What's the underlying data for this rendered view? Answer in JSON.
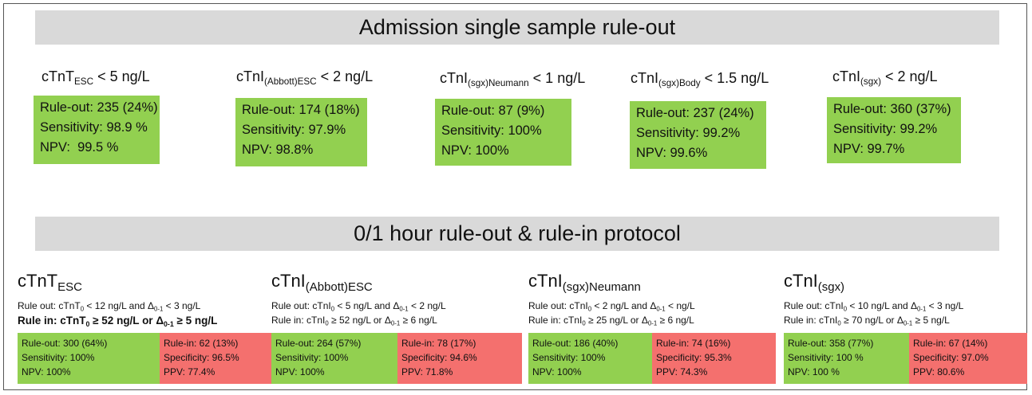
{
  "section1": {
    "title": "Admission single sample rule-out",
    "panels": [
      {
        "label": [
          "cTnT",
          {
            "sub": "ESC"
          },
          " < 5 ng/L"
        ],
        "lines": [
          "Rule-out: 235 (24%)",
          "Sensitivity: 98.9 %",
          "NPV:  99.5 %"
        ]
      },
      {
        "label": [
          "cTnI",
          {
            "sub": "(Abbott)ESC"
          },
          " < 2 ng/L"
        ],
        "lines": [
          "Rule-out: 174 (18%)",
          "Sensitivity: 97.9%",
          "NPV: 98.8%"
        ]
      },
      {
        "label": [
          "cTnI",
          {
            "sub": "(sgx)Neumann"
          },
          " < 1 ng/L"
        ],
        "lines": [
          "Rule-out: 87 (9%)",
          "Sensitivity: 100%",
          "NPV: 100%"
        ]
      },
      {
        "label": [
          "cTnI",
          {
            "sub": "(sgx)Body"
          },
          " < 1.5 ng/L"
        ],
        "lines": [
          "Rule-out: 237 (24%)",
          "Sensitivity: 99.2%",
          "NPV: 99.6%"
        ]
      },
      {
        "label": [
          "cTnI",
          {
            "sub": "(sgx)"
          },
          " < 2 ng/L"
        ],
        "lines": [
          "Rule-out: 360 (37%)",
          "Sensitivity: 99.2%",
          "NPV: 99.7%"
        ]
      }
    ]
  },
  "section2": {
    "title": "0/1 hour rule-out & rule-in protocol",
    "panels": [
      {
        "heading": [
          "cTnT",
          {
            "sub": "ESC"
          }
        ],
        "rule_out": [
          "Rule out: cTnT",
          {
            "sub": "0"
          },
          " < 12 ng/L and Δ",
          {
            "sub": "0-1"
          },
          " < 3 ng/L"
        ],
        "rule_in": [
          "Rule in: cTnT",
          {
            "sub": "0"
          },
          " ≥ 52 ng/L or Δ",
          {
            "sub": "0-1"
          },
          " ≥ 5 ng/L"
        ],
        "out_box": [
          "Rule-out: 300 (64%)",
          "Sensitivity: 100%",
          "NPV: 100%"
        ],
        "in_box": [
          "Rule-in: 62 (13%)",
          "Specificity: 96.5%",
          "PPV: 77.4%"
        ]
      },
      {
        "heading": [
          "cTnI",
          {
            "sub": "(Abbott)ESC"
          }
        ],
        "rule_out": [
          "Rule out: cTnI",
          {
            "sub": "0"
          },
          " < 5 ng/L and Δ",
          {
            "sub": "0-1"
          },
          " < 2 ng/L"
        ],
        "rule_in": [
          "Rule in: cTnI",
          {
            "sub": "0"
          },
          " ≥ 52 ng/L or Δ",
          {
            "sub": "0-1"
          },
          " ≥ 6 ng/L"
        ],
        "out_box": [
          "Rule-out: 264 (57%)",
          "Sensitivity: 100%",
          "NPV: 100%"
        ],
        "in_box": [
          "Rule-in: 78 (17%)",
          "Specificity: 94.6%",
          "PPV: 71.8%"
        ]
      },
      {
        "heading": [
          "cTnI",
          {
            "sub": "(sgx)Neumann"
          }
        ],
        "rule_out": [
          "Rule out: cTnI",
          {
            "sub": "0"
          },
          " < 2 ng/L and Δ",
          {
            "sub": "0-1"
          },
          " <  ng/L"
        ],
        "rule_in": [
          "Rule in: cTnI",
          {
            "sub": "0"
          },
          " ≥ 25 ng/L or Δ",
          {
            "sub": "0-1"
          },
          " ≥ 6 ng/L"
        ],
        "out_box": [
          "Rule-out: 186 (40%)",
          "Sensitivity: 100%",
          "NPV: 100%"
        ],
        "in_box": [
          "Rule-in: 74 (16%)",
          "Specificity: 95.3%",
          "PPV: 74.3%"
        ]
      },
      {
        "heading": [
          "cTnI",
          {
            "sub": "(sgx)"
          }
        ],
        "rule_out": [
          "Rule out: cTnI",
          {
            "sub": "0"
          },
          " < 10 ng/L and Δ",
          {
            "sub": "0-1"
          },
          " < 3 ng/L"
        ],
        "rule_in": [
          "Rule in: cTnI",
          {
            "sub": "0"
          },
          " ≥ 70 ng/L or Δ",
          {
            "sub": "0-1"
          },
          " ≥ 5 ng/L"
        ],
        "out_box": [
          "Rule-out: 358 (77%)",
          "Sensitivity: 100 %",
          "NPV: 100 %"
        ],
        "in_box": [
          "Rule-in: 67 (14%)",
          "Specificity: 97.0%",
          "PPV: 80.6%"
        ]
      }
    ]
  }
}
